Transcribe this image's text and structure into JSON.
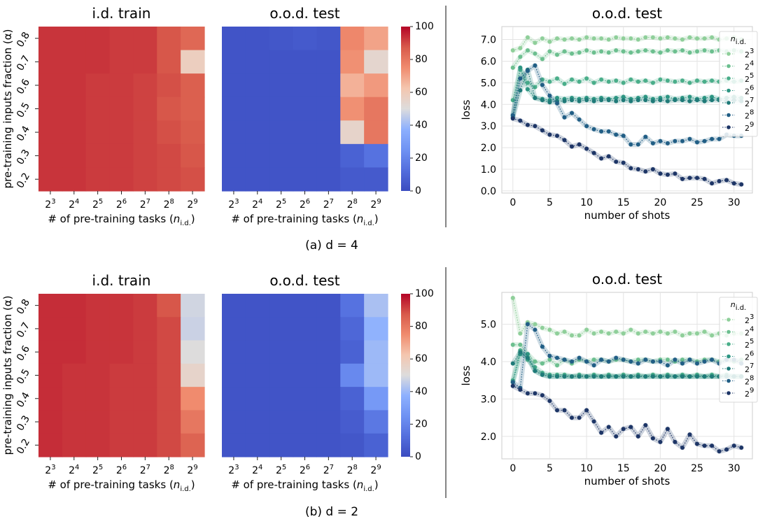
{
  "chart_data": [
    {
      "type": "heatmap",
      "title": "i.d. train",
      "xlabel": "# of pre-training tasks (n_i.d.)",
      "ylabel": "pre-training inputs fraction (α)",
      "x_ticks": [
        "2^3",
        "2^4",
        "2^5",
        "2^6",
        "2^7",
        "2^8",
        "2^9"
      ],
      "y_ticks": [
        "0.8",
        "0.7",
        "0.6",
        "0.5",
        "0.4",
        "0.3",
        "0.2"
      ],
      "values": [
        [
          93,
          93,
          93,
          92,
          92,
          88,
          84
        ],
        [
          93,
          93,
          93,
          92,
          92,
          88,
          58
        ],
        [
          93,
          93,
          92,
          92,
          91,
          89,
          86
        ],
        [
          93,
          93,
          92,
          92,
          91,
          88,
          86
        ],
        [
          93,
          93,
          92,
          92,
          91,
          89,
          87
        ],
        [
          93,
          93,
          92,
          92,
          91,
          90,
          88
        ],
        [
          93,
          93,
          92,
          92,
          91,
          90,
          89
        ]
      ]
    },
    {
      "type": "heatmap",
      "title": "o.o.d. test",
      "xlabel": "# of pre-training tasks (n_i.d.)",
      "x_ticks": [
        "2^3",
        "2^4",
        "2^5",
        "2^6",
        "2^7",
        "2^8",
        "2^9"
      ],
      "y_ticks": [
        "0.8",
        "0.7",
        "0.6",
        "0.5",
        "0.4",
        "0.3",
        "0.2"
      ],
      "colorbar": {
        "min": 0,
        "max": 100,
        "ticks": [
          "0",
          "20",
          "40",
          "60",
          "80",
          "100"
        ]
      },
      "values": [
        [
          3,
          3,
          4,
          5,
          4,
          76,
          70
        ],
        [
          3,
          3,
          3,
          3,
          3,
          74,
          54
        ],
        [
          3,
          3,
          3,
          3,
          3,
          67,
          72
        ],
        [
          3,
          3,
          3,
          3,
          3,
          74,
          80
        ],
        [
          3,
          3,
          3,
          3,
          3,
          55,
          80
        ],
        [
          3,
          3,
          3,
          3,
          3,
          8,
          14
        ],
        [
          3,
          3,
          3,
          3,
          3,
          5,
          5
        ]
      ]
    },
    {
      "type": "line",
      "title": "o.o.d. test",
      "xlabel": "number of shots",
      "ylabel": "loss",
      "xlim": [
        -1.5,
        32.5
      ],
      "ylim": [
        -0.1,
        7.6
      ],
      "x_ticks": [
        "0",
        "5",
        "10",
        "15",
        "20",
        "25",
        "30"
      ],
      "y_ticks": [
        "0.0",
        "1.0",
        "2.0",
        "3.0",
        "4.0",
        "5.0",
        "6.0",
        "7.0"
      ],
      "legend_title": "n_i.d.",
      "x": [
        0,
        1,
        2,
        3,
        4,
        5,
        6,
        7,
        8,
        9,
        10,
        11,
        12,
        13,
        14,
        15,
        16,
        17,
        18,
        19,
        20,
        21,
        22,
        23,
        24,
        25,
        26,
        27,
        28,
        29,
        30,
        31
      ],
      "series": [
        {
          "name": "2^3",
          "color": "#8fcf9a",
          "values": [
            6.5,
            6.6,
            7.1,
            6.85,
            7.05,
            6.9,
            7.05,
            7.0,
            7.05,
            7.0,
            7.1,
            7.05,
            7.05,
            7.0,
            7.1,
            7.05,
            7.05,
            7.0,
            7.1,
            7.1,
            7.05,
            7.1,
            7.05,
            7.0,
            7.1,
            7.05,
            7.05,
            7.1,
            7.0,
            7.05,
            7.1,
            7.0
          ]
        },
        {
          "name": "2^4",
          "color": "#6cbf8f",
          "values": [
            5.7,
            6.2,
            6.5,
            6.35,
            6.1,
            6.45,
            6.3,
            6.45,
            6.35,
            6.4,
            6.5,
            6.4,
            6.45,
            6.4,
            6.5,
            6.45,
            6.4,
            6.45,
            6.5,
            6.45,
            6.4,
            6.5,
            6.45,
            6.5,
            6.4,
            6.45,
            6.5,
            6.45,
            6.5,
            6.45,
            6.5,
            6.45
          ]
        },
        {
          "name": "2^5",
          "color": "#4aae8a",
          "values": [
            4.2,
            5.6,
            5.0,
            4.8,
            5.15,
            5.05,
            5.2,
            4.95,
            5.15,
            5.05,
            5.2,
            5.0,
            5.15,
            5.05,
            5.1,
            5.0,
            5.15,
            5.05,
            5.1,
            5.0,
            5.15,
            5.1,
            5.05,
            5.1,
            5.0,
            5.1,
            5.05,
            5.1,
            5.05,
            5.1,
            5.05,
            5.1
          ]
        },
        {
          "name": "2^6",
          "color": "#2e9683",
          "values": [
            3.5,
            5.7,
            4.7,
            4.3,
            4.25,
            4.2,
            4.3,
            4.25,
            4.3,
            4.25,
            4.3,
            4.25,
            4.3,
            4.25,
            4.3,
            4.35,
            4.25,
            4.3,
            4.35,
            4.25,
            4.3,
            4.35,
            4.25,
            4.3,
            4.35,
            4.25,
            4.3,
            4.35,
            4.25,
            4.3,
            4.35,
            4.3
          ]
        },
        {
          "name": "2^7",
          "color": "#1f7a78",
          "values": [
            3.4,
            4.65,
            5.6,
            4.3,
            4.2,
            4.1,
            4.15,
            4.15,
            4.2,
            4.15,
            4.2,
            4.15,
            4.2,
            4.2,
            4.15,
            4.2,
            4.15,
            4.2,
            4.2,
            4.15,
            4.2,
            4.15,
            4.2,
            4.2,
            4.15,
            4.2,
            4.15,
            4.2,
            4.2,
            4.15,
            4.2,
            4.15
          ]
        },
        {
          "name": "2^8",
          "color": "#215e85",
          "values": [
            3.5,
            5.2,
            5.55,
            5.8,
            4.9,
            4.4,
            4.05,
            3.4,
            3.6,
            3.3,
            3.0,
            2.85,
            2.75,
            2.75,
            2.6,
            2.55,
            2.15,
            2.15,
            2.5,
            2.2,
            2.3,
            2.2,
            2.3,
            2.3,
            2.4,
            2.25,
            2.3,
            2.4,
            2.4,
            2.6,
            2.55,
            2.55
          ]
        },
        {
          "name": "2^9",
          "color": "#1d3566",
          "values": [
            3.35,
            3.25,
            3.05,
            3.0,
            2.8,
            2.6,
            2.55,
            2.35,
            2.05,
            2.15,
            1.95,
            1.75,
            1.5,
            1.6,
            1.35,
            1.3,
            1.05,
            1.0,
            0.9,
            1.0,
            0.8,
            0.75,
            0.8,
            0.55,
            0.6,
            0.6,
            0.55,
            0.35,
            0.45,
            0.5,
            0.35,
            0.3
          ]
        }
      ]
    },
    {
      "type": "heatmap",
      "title": "i.d. train",
      "xlabel": "# of pre-training tasks (n_i.d.)",
      "ylabel": "pre-training inputs fraction (α)",
      "x_ticks": [
        "2^3",
        "2^4",
        "2^5",
        "2^6",
        "2^7",
        "2^8",
        "2^9"
      ],
      "y_ticks": [
        "0.8",
        "0.7",
        "0.6",
        "0.5",
        "0.4",
        "0.3",
        "0.2"
      ],
      "values": [
        [
          94,
          94,
          93,
          93,
          92,
          88,
          48
        ],
        [
          94,
          94,
          93,
          93,
          92,
          90,
          47
        ],
        [
          94,
          94,
          93,
          93,
          92,
          90,
          50
        ],
        [
          94,
          93,
          93,
          92,
          92,
          90,
          55
        ],
        [
          94,
          93,
          93,
          92,
          92,
          90,
          75
        ],
        [
          94,
          93,
          93,
          92,
          92,
          90,
          80
        ],
        [
          94,
          93,
          93,
          92,
          92,
          90,
          85
        ]
      ]
    },
    {
      "type": "heatmap",
      "title": "o.o.d. test",
      "xlabel": "# of pre-training tasks (n_i.d.)",
      "x_ticks": [
        "2^3",
        "2^4",
        "2^5",
        "2^6",
        "2^7",
        "2^8",
        "2^9"
      ],
      "y_ticks": [
        "0.8",
        "0.7",
        "0.6",
        "0.5",
        "0.4",
        "0.3",
        "0.2"
      ],
      "colorbar": {
        "min": 0,
        "max": 100,
        "ticks": [
          "0",
          "20",
          "40",
          "60",
          "80",
          "100"
        ]
      },
      "values": [
        [
          3,
          3,
          3,
          3,
          3,
          14,
          42
        ],
        [
          3,
          3,
          3,
          3,
          3,
          10,
          38
        ],
        [
          3,
          3,
          3,
          3,
          3,
          8,
          40
        ],
        [
          3,
          3,
          3,
          3,
          3,
          22,
          40
        ],
        [
          3,
          3,
          3,
          3,
          3,
          8,
          28
        ],
        [
          3,
          3,
          3,
          3,
          3,
          6,
          16
        ],
        [
          3,
          3,
          3,
          3,
          3,
          4,
          8
        ]
      ]
    },
    {
      "type": "line",
      "title": "o.o.d. test",
      "xlabel": "number of shots",
      "ylabel": "loss",
      "xlim": [
        -1.5,
        32.5
      ],
      "ylim": [
        1.4,
        5.85
      ],
      "x_ticks": [
        "0",
        "5",
        "10",
        "15",
        "20",
        "25",
        "30"
      ],
      "y_ticks": [
        "2.0",
        "3.0",
        "4.0",
        "5.0"
      ],
      "legend_title": "n_i.d.",
      "x": [
        0,
        1,
        2,
        3,
        4,
        5,
        6,
        7,
        8,
        9,
        10,
        11,
        12,
        13,
        14,
        15,
        16,
        17,
        18,
        19,
        20,
        21,
        22,
        23,
        24,
        25,
        26,
        27,
        28,
        29,
        30,
        31
      ],
      "series": [
        {
          "name": "2^3",
          "color": "#8fcf9a",
          "values": [
            5.7,
            4.75,
            5.05,
            5.0,
            4.9,
            4.85,
            4.75,
            4.8,
            4.7,
            4.7,
            4.85,
            4.75,
            4.8,
            4.75,
            4.8,
            4.75,
            4.85,
            4.75,
            4.8,
            4.75,
            4.8,
            4.75,
            4.8,
            4.7,
            4.75,
            4.75,
            4.8,
            4.7,
            4.75,
            4.7,
            4.75,
            4.75
          ]
        },
        {
          "name": "2^4",
          "color": "#6cbf8f",
          "values": [
            4.45,
            4.45,
            4.2,
            4.0,
            3.95,
            4.05,
            3.9,
            4.05,
            3.95,
            4.05,
            4.0,
            4.05,
            4.05,
            4.0,
            4.05,
            4.05,
            4.0,
            4.05,
            4.05,
            4.0,
            4.05,
            4.05,
            4.0,
            4.05,
            4.05,
            4.0,
            4.05,
            4.05,
            4.0,
            4.05,
            4.0,
            4.05
          ]
        },
        {
          "name": "2^5",
          "color": "#4aae8a",
          "values": [
            3.5,
            4.3,
            4.05,
            3.85,
            3.7,
            3.65,
            3.65,
            3.65,
            3.6,
            3.65,
            3.6,
            3.65,
            3.6,
            3.65,
            3.6,
            3.65,
            3.6,
            3.65,
            3.6,
            3.65,
            3.6,
            3.65,
            3.6,
            3.65,
            3.6,
            3.65,
            3.6,
            3.65,
            3.6,
            3.65,
            3.6,
            3.6
          ]
        },
        {
          "name": "2^6",
          "color": "#2e9683",
          "values": [
            3.45,
            4.2,
            4.2,
            3.75,
            3.65,
            3.6,
            3.6,
            3.6,
            3.6,
            3.6,
            3.6,
            3.6,
            3.6,
            3.6,
            3.6,
            3.6,
            3.6,
            3.6,
            3.6,
            3.6,
            3.6,
            3.6,
            3.6,
            3.6,
            3.6,
            3.6,
            3.6,
            3.6,
            3.6,
            3.6,
            3.6,
            3.6
          ]
        },
        {
          "name": "2^7",
          "color": "#1f7a78",
          "values": [
            3.95,
            4.25,
            4.1,
            3.75,
            3.65,
            3.6,
            3.6,
            3.6,
            3.6,
            3.6,
            3.6,
            3.6,
            3.6,
            3.6,
            3.6,
            3.6,
            3.6,
            3.6,
            3.6,
            3.6,
            3.6,
            3.6,
            3.6,
            3.6,
            3.6,
            3.6,
            3.6,
            3.6,
            3.6,
            3.6,
            3.6,
            3.6
          ]
        },
        {
          "name": "2^8",
          "color": "#215e85",
          "values": [
            3.45,
            3.3,
            5.0,
            4.85,
            4.4,
            4.15,
            4.1,
            4.05,
            4.0,
            4.1,
            4.0,
            3.9,
            4.05,
            4.0,
            4.1,
            4.05,
            4.0,
            3.95,
            4.05,
            4.0,
            4.0,
            3.9,
            4.05,
            3.95,
            4.05,
            3.95,
            4.0,
            4.05,
            3.95,
            4.05,
            4.05,
            3.95
          ]
        },
        {
          "name": "2^9",
          "color": "#1d3566",
          "values": [
            3.35,
            3.25,
            3.15,
            3.15,
            3.1,
            2.95,
            2.7,
            2.7,
            2.5,
            2.5,
            2.7,
            2.4,
            2.1,
            2.25,
            2.0,
            2.2,
            2.25,
            2.0,
            2.3,
            1.95,
            1.85,
            2.2,
            1.85,
            1.7,
            2.05,
            1.8,
            1.75,
            1.75,
            1.6,
            1.65,
            1.75,
            1.7
          ]
        }
      ]
    }
  ],
  "captions": {
    "a": "(a)  d = 4",
    "b": "(b)  d = 2"
  }
}
